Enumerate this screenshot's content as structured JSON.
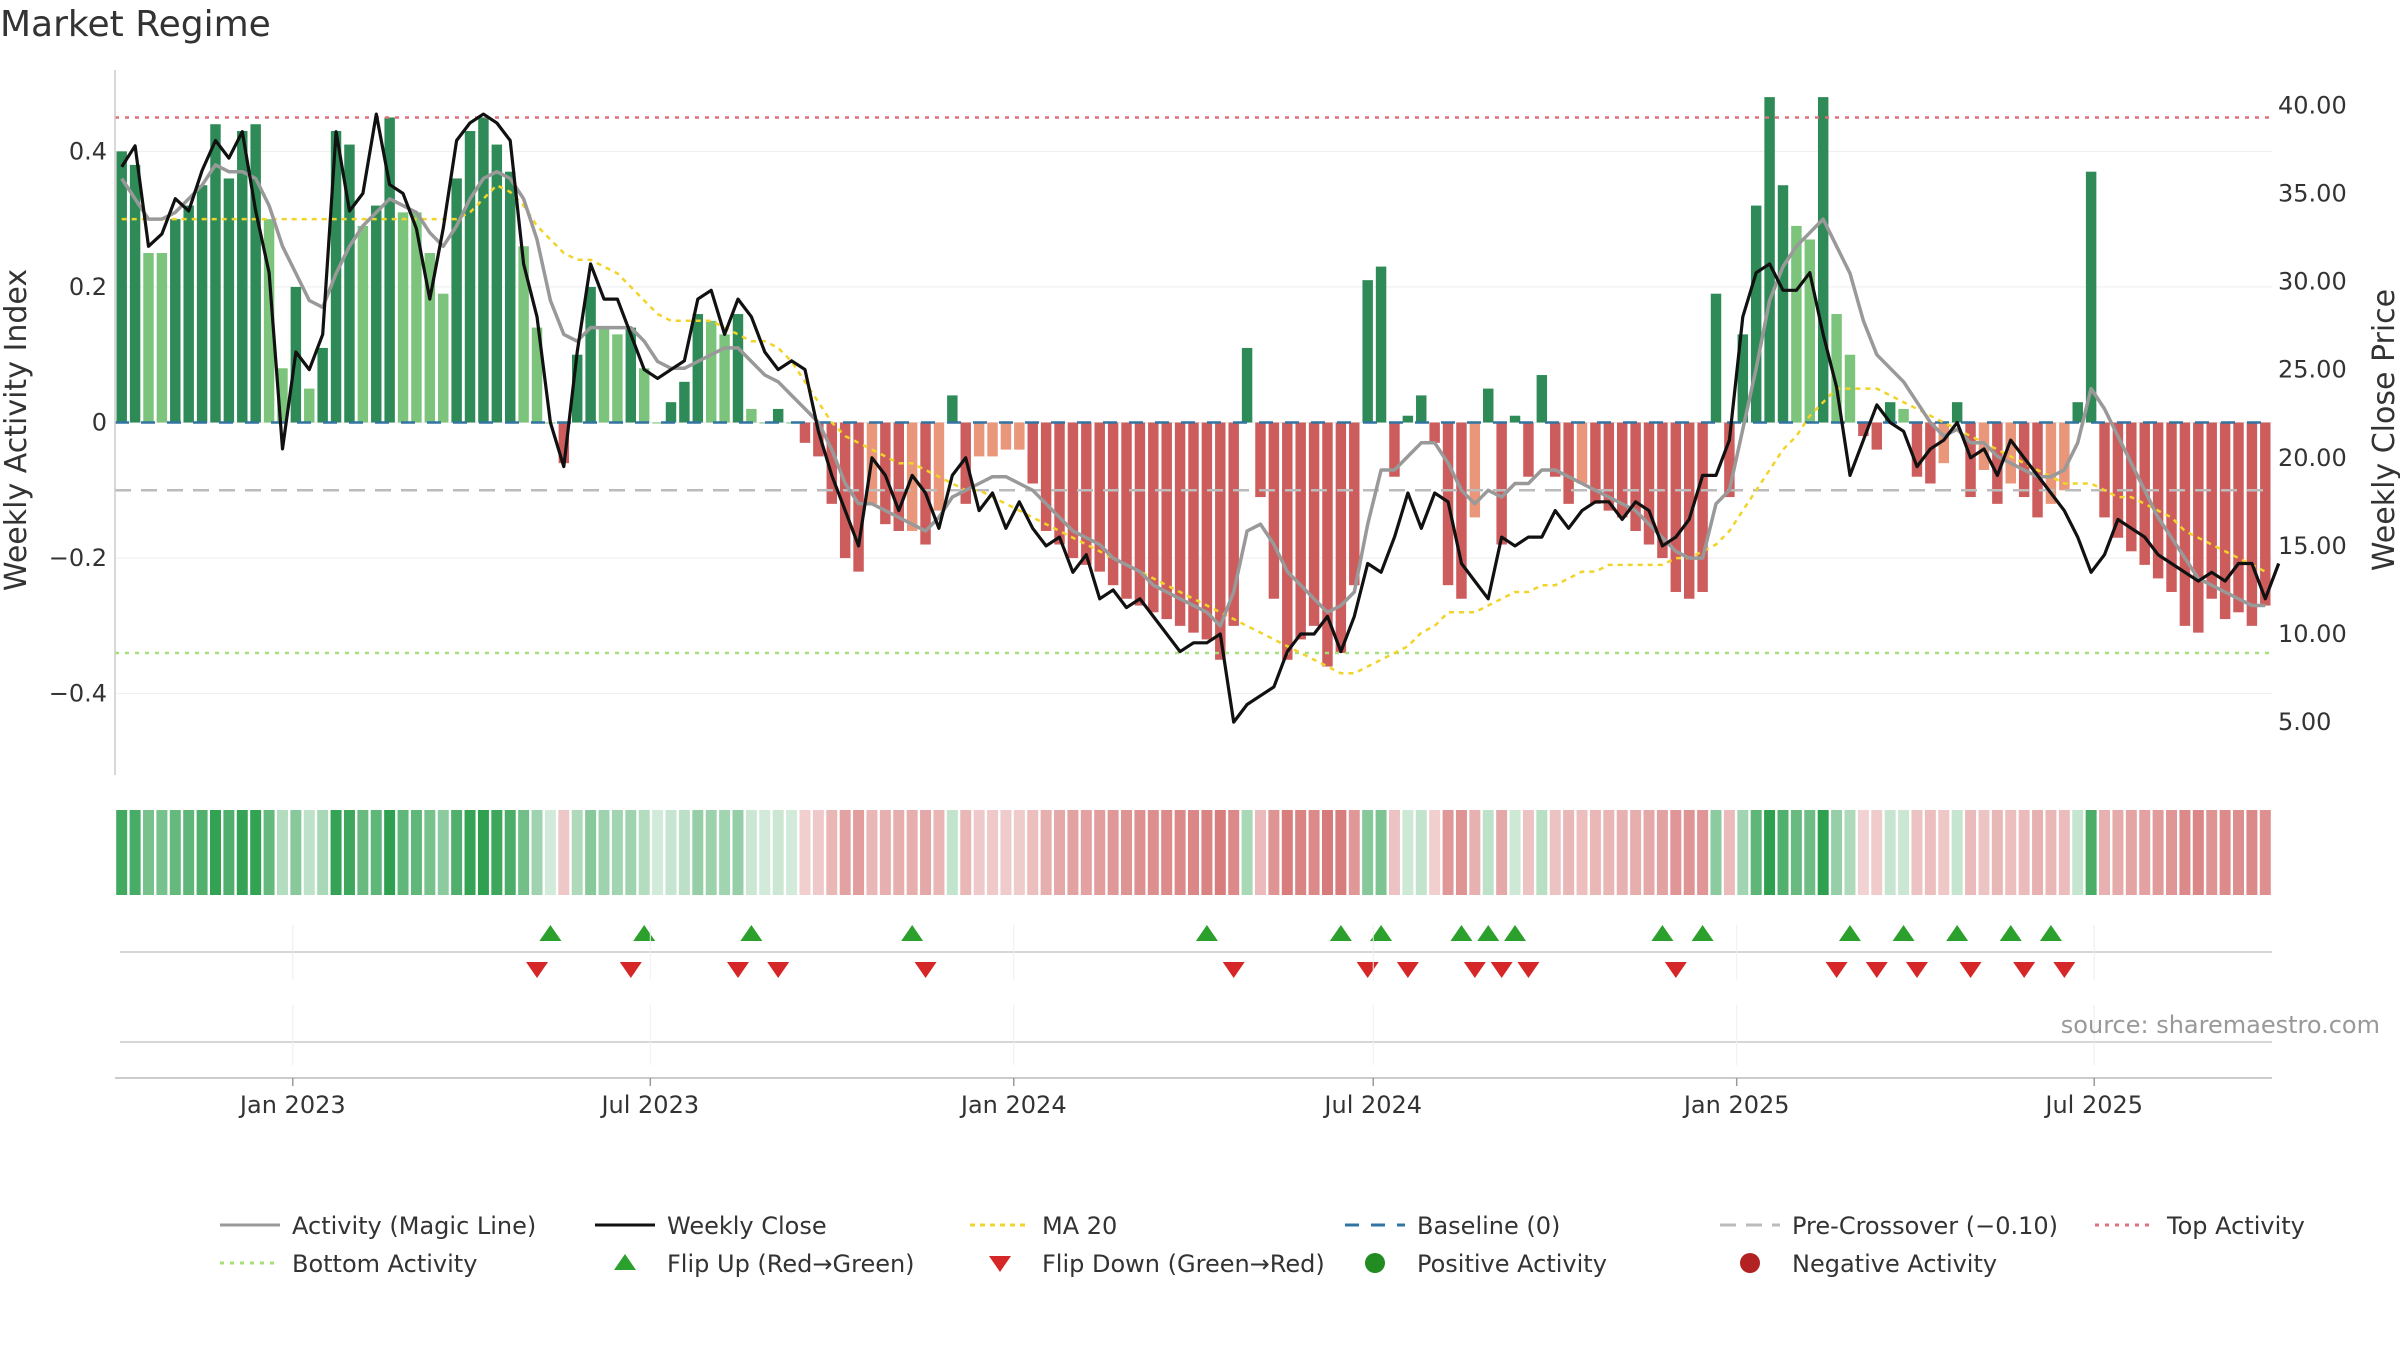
{
  "chart_data": {
    "type": "bar",
    "title": "Market Regime",
    "source": "source: sharemaestro.com",
    "ylabel_left": "Weekly Activity Index",
    "ylabel_right": "Weekly Close Price",
    "left_ylim": [
      -0.52,
      0.52
    ],
    "right_ylim": [
      2.0,
      42.0
    ],
    "left_ticks": [
      {
        "v": 0.4,
        "label": "0.4"
      },
      {
        "v": 0.2,
        "label": "0.2"
      },
      {
        "v": 0,
        "label": "0"
      },
      {
        "v": -0.2,
        "label": "−0.2"
      },
      {
        "v": -0.4,
        "label": "−0.4"
      }
    ],
    "right_ticks": [
      {
        "v": 40,
        "label": "40.00"
      },
      {
        "v": 35,
        "label": "35.00"
      },
      {
        "v": 30,
        "label": "30.00"
      },
      {
        "v": 25,
        "label": "25.00"
      },
      {
        "v": 20,
        "label": "20.00"
      },
      {
        "v": 15,
        "label": "15.00"
      },
      {
        "v": 10,
        "label": "10.00"
      },
      {
        "v": 5,
        "label": "5.00"
      }
    ],
    "x_start": "2022-10-03",
    "x_end": "2025-09-29",
    "date_ticks": [
      {
        "date": "2023-01-01",
        "label": "Jan 2023"
      },
      {
        "date": "2023-07-01",
        "label": "Jul 2023"
      },
      {
        "date": "2024-01-01",
        "label": "Jan 2024"
      },
      {
        "date": "2024-07-01",
        "label": "Jul 2024"
      },
      {
        "date": "2025-01-01",
        "label": "Jan 2025"
      },
      {
        "date": "2025-07-01",
        "label": "Jul 2025"
      }
    ],
    "activity_weekly": [
      0.4,
      0.38,
      0.25,
      0.25,
      0.3,
      0.32,
      0.35,
      0.44,
      0.36,
      0.43,
      0.44,
      0.3,
      0.08,
      0.2,
      0.05,
      0.11,
      0.43,
      0.41,
      0.29,
      0.32,
      0.45,
      0.31,
      0.31,
      0.25,
      0.19,
      0.36,
      0.43,
      0.45,
      0.41,
      0.37,
      0.26,
      0.14,
      0.0,
      -0.06,
      0.1,
      0.2,
      0.14,
      0.13,
      0.14,
      0.08,
      0.0,
      0.03,
      0.06,
      0.16,
      0.15,
      0.13,
      0.16,
      0.02,
      0.0,
      0.02,
      0.0,
      -0.03,
      -0.05,
      -0.12,
      -0.2,
      -0.22,
      -0.12,
      -0.15,
      -0.16,
      -0.16,
      -0.18,
      -0.13,
      0.04,
      -0.12,
      -0.05,
      -0.05,
      -0.04,
      -0.04,
      -0.09,
      -0.16,
      -0.18,
      -0.2,
      -0.21,
      -0.22,
      -0.24,
      -0.26,
      -0.27,
      -0.28,
      -0.29,
      -0.3,
      -0.31,
      -0.32,
      -0.35,
      -0.3,
      0.11,
      -0.11,
      -0.26,
      -0.35,
      -0.32,
      -0.3,
      -0.36,
      -0.34,
      -0.24,
      0.21,
      0.23,
      -0.08,
      0.01,
      0.04,
      -0.03,
      -0.24,
      -0.26,
      -0.14,
      0.05,
      -0.18,
      0.01,
      -0.08,
      0.07,
      -0.08,
      -0.12,
      -0.09,
      -0.12,
      -0.13,
      -0.14,
      -0.16,
      -0.18,
      -0.2,
      -0.25,
      -0.26,
      -0.25,
      0.19,
      -0.11,
      0.13,
      0.32,
      0.48,
      0.35,
      0.29,
      0.27,
      0.48,
      0.16,
      0.1,
      -0.02,
      -0.04,
      0.03,
      0.02,
      -0.08,
      -0.09,
      -0.06,
      0.03,
      -0.11,
      -0.07,
      -0.12,
      -0.09,
      -0.11,
      -0.14,
      -0.12,
      -0.1,
      0.03,
      0.37,
      -0.14,
      -0.17,
      -0.19,
      -0.21,
      -0.23,
      -0.25,
      -0.3,
      -0.31,
      -0.26,
      -0.29,
      -0.28,
      -0.3,
      -0.27
    ],
    "weekly_close": [
      36.5,
      37.7,
      32.0,
      32.7,
      34.7,
      34.0,
      36.3,
      38.0,
      37.0,
      38.5,
      34.0,
      30.5,
      20.5,
      26.0,
      25.0,
      27.0,
      38.5,
      34.0,
      35.0,
      39.5,
      35.5,
      35.0,
      33.0,
      29.0,
      33.0,
      38.0,
      39.0,
      39.5,
      39.0,
      38.0,
      31.0,
      28.0,
      22.0,
      19.5,
      26.0,
      31.0,
      29.0,
      29.0,
      27.0,
      25.0,
      24.5,
      25.0,
      25.5,
      29.0,
      29.5,
      27.0,
      29.0,
      28.0,
      26.0,
      25.0,
      25.5,
      25.0,
      21.5,
      19.0,
      17.0,
      15.0,
      20.0,
      19.0,
      17.0,
      19.0,
      18.0,
      16.0,
      19.0,
      20.0,
      17.0,
      18.0,
      16.0,
      17.5,
      16.0,
      15.0,
      15.5,
      13.5,
      14.5,
      12.0,
      12.5,
      11.5,
      12.0,
      11.0,
      10.0,
      9.0,
      9.5,
      9.5,
      10.0,
      5.0,
      6.0,
      6.5,
      7.0,
      9.0,
      10.0,
      10.0,
      11.0,
      9.0,
      11.0,
      14.0,
      13.5,
      15.5,
      18.0,
      16.0,
      18.0,
      17.5,
      14.0,
      13.0,
      12.0,
      15.5,
      15.0,
      15.5,
      15.5,
      17.0,
      16.0,
      17.0,
      17.5,
      17.5,
      16.5,
      17.5,
      17.0,
      15.0,
      15.5,
      16.5,
      19.0,
      19.0,
      21.0,
      28.0,
      30.5,
      31.0,
      29.5,
      29.5,
      30.5,
      27.0,
      24.0,
      19.0,
      21.0,
      23.0,
      22.0,
      21.5,
      19.5,
      20.5,
      21.0,
      22.0,
      20.0,
      20.5,
      19.0,
      21.0,
      20.0,
      19.0,
      18.0,
      17.0,
      15.5,
      13.5,
      14.5,
      16.5,
      16.0,
      15.5,
      14.5,
      14.0,
      13.5,
      13.0,
      13.5,
      13.0,
      14.0,
      14.0,
      12.0,
      14.0
    ],
    "magic_line": [
      0.36,
      0.33,
      0.3,
      0.3,
      0.31,
      0.33,
      0.35,
      0.38,
      0.37,
      0.37,
      0.36,
      0.32,
      0.26,
      0.22,
      0.18,
      0.17,
      0.22,
      0.26,
      0.29,
      0.31,
      0.33,
      0.32,
      0.31,
      0.28,
      0.26,
      0.29,
      0.33,
      0.36,
      0.37,
      0.36,
      0.33,
      0.27,
      0.18,
      0.13,
      0.12,
      0.14,
      0.14,
      0.14,
      0.14,
      0.12,
      0.09,
      0.08,
      0.08,
      0.09,
      0.1,
      0.11,
      0.11,
      0.09,
      0.07,
      0.06,
      0.04,
      0.02,
      0.0,
      -0.04,
      -0.09,
      -0.12,
      -0.12,
      -0.13,
      -0.14,
      -0.15,
      -0.16,
      -0.14,
      -0.11,
      -0.1,
      -0.09,
      -0.08,
      -0.08,
      -0.09,
      -0.1,
      -0.12,
      -0.14,
      -0.16,
      -0.17,
      -0.18,
      -0.2,
      -0.21,
      -0.22,
      -0.24,
      -0.25,
      -0.26,
      -0.27,
      -0.28,
      -0.3,
      -0.25,
      -0.16,
      -0.15,
      -0.18,
      -0.22,
      -0.24,
      -0.26,
      -0.28,
      -0.27,
      -0.25,
      -0.15,
      -0.07,
      -0.07,
      -0.05,
      -0.03,
      -0.03,
      -0.06,
      -0.1,
      -0.12,
      -0.1,
      -0.11,
      -0.09,
      -0.09,
      -0.07,
      -0.07,
      -0.08,
      -0.09,
      -0.1,
      -0.11,
      -0.12,
      -0.13,
      -0.15,
      -0.17,
      -0.19,
      -0.2,
      -0.2,
      -0.12,
      -0.1,
      -0.01,
      0.08,
      0.18,
      0.23,
      0.26,
      0.28,
      0.3,
      0.26,
      0.22,
      0.15,
      0.1,
      0.08,
      0.06,
      0.03,
      0.0,
      -0.02,
      -0.01,
      -0.03,
      -0.03,
      -0.05,
      -0.06,
      -0.07,
      -0.08,
      -0.08,
      -0.07,
      -0.03,
      0.05,
      0.02,
      -0.02,
      -0.06,
      -0.1,
      -0.14,
      -0.17,
      -0.2,
      -0.23,
      -0.24,
      -0.25,
      -0.26,
      -0.27,
      -0.27
    ],
    "ma20": [
      0.3,
      0.3,
      0.3,
      0.3,
      0.3,
      0.3,
      0.3,
      0.3,
      0.3,
      0.3,
      0.3,
      0.3,
      0.3,
      0.3,
      0.3,
      0.3,
      0.3,
      0.3,
      0.3,
      0.3,
      0.3,
      0.3,
      0.3,
      0.3,
      0.3,
      0.3,
      0.31,
      0.33,
      0.35,
      0.34,
      0.32,
      0.29,
      0.27,
      0.25,
      0.24,
      0.24,
      0.23,
      0.22,
      0.2,
      0.18,
      0.16,
      0.15,
      0.15,
      0.15,
      0.15,
      0.14,
      0.13,
      0.12,
      0.12,
      0.11,
      0.09,
      0.06,
      0.03,
      0.0,
      -0.02,
      -0.03,
      -0.04,
      -0.05,
      -0.06,
      -0.06,
      -0.07,
      -0.08,
      -0.09,
      -0.1,
      -0.1,
      -0.11,
      -0.12,
      -0.13,
      -0.14,
      -0.15,
      -0.16,
      -0.17,
      -0.18,
      -0.19,
      -0.2,
      -0.21,
      -0.22,
      -0.23,
      -0.24,
      -0.25,
      -0.26,
      -0.27,
      -0.28,
      -0.29,
      -0.3,
      -0.31,
      -0.32,
      -0.33,
      -0.34,
      -0.35,
      -0.36,
      -0.37,
      -0.37,
      -0.36,
      -0.35,
      -0.34,
      -0.33,
      -0.31,
      -0.3,
      -0.28,
      -0.28,
      -0.28,
      -0.27,
      -0.26,
      -0.25,
      -0.25,
      -0.24,
      -0.24,
      -0.23,
      -0.22,
      -0.22,
      -0.21,
      -0.21,
      -0.21,
      -0.21,
      -0.21,
      -0.2,
      -0.2,
      -0.19,
      -0.18,
      -0.16,
      -0.13,
      -0.1,
      -0.07,
      -0.04,
      -0.02,
      0.01,
      0.03,
      0.05,
      0.05,
      0.05,
      0.05,
      0.04,
      0.03,
      0.02,
      0.01,
      0.0,
      -0.01,
      -0.02,
      -0.03,
      -0.04,
      -0.05,
      -0.06,
      -0.07,
      -0.08,
      -0.09,
      -0.09,
      -0.09,
      -0.1,
      -0.11,
      -0.11,
      -0.12,
      -0.13,
      -0.14,
      -0.16,
      -0.17,
      -0.18,
      -0.19,
      -0.2,
      -0.21,
      -0.22
    ],
    "baseline": 0,
    "pre_crossover": -0.1,
    "top_activity": 0.45,
    "bottom_activity": -0.34,
    "flip_up_weeks": [
      32,
      39,
      47,
      59,
      81,
      91,
      94,
      100,
      102,
      104,
      115,
      118,
      129,
      133,
      137,
      141,
      144
    ],
    "flip_down_weeks": [
      31,
      38,
      46,
      49,
      60,
      83,
      93,
      96,
      101,
      103,
      105,
      116,
      128,
      131,
      134,
      138,
      142,
      145
    ],
    "legend": [
      {
        "key": "magic",
        "label": "Activity (Magic Line)",
        "color": "#999999"
      },
      {
        "key": "close",
        "label": "Weekly Close",
        "color": "#111111"
      },
      {
        "key": "ma20",
        "label": "MA 20",
        "color": "#f2d329"
      },
      {
        "key": "baseline",
        "label": "Baseline (0)",
        "color": "#3274a1"
      },
      {
        "key": "precross",
        "label": "Pre-Crossover (−0.10)",
        "color": "#bbbbbb"
      },
      {
        "key": "top",
        "label": "Top Activity",
        "color": "#e0707c"
      },
      {
        "key": "bottom",
        "label": "Bottom Activity",
        "color": "#a6e07a"
      },
      {
        "key": "flipup",
        "label": "Flip Up (Red→Green)",
        "color": "#2ca02c"
      },
      {
        "key": "flipdown",
        "label": "Flip Down (Green→Red)",
        "color": "#d62728"
      },
      {
        "key": "pos",
        "label": "Positive Activity",
        "color": "#228b22"
      },
      {
        "key": "neg",
        "label": "Negative Activity",
        "color": "#b22222"
      }
    ],
    "colors": {
      "strong_positive": "#2e8b57",
      "positive": "#7cc47c",
      "strong_negative": "#cd5c5c",
      "negative": "#e9967a",
      "close_line": "#111111",
      "magic_line": "#999999",
      "ma20": "#f2d329",
      "baseline": "#3274a1",
      "pre_crossover": "#bbbbbb",
      "top_activity": "#e0707c",
      "bottom_activity": "#a6e07a"
    }
  }
}
